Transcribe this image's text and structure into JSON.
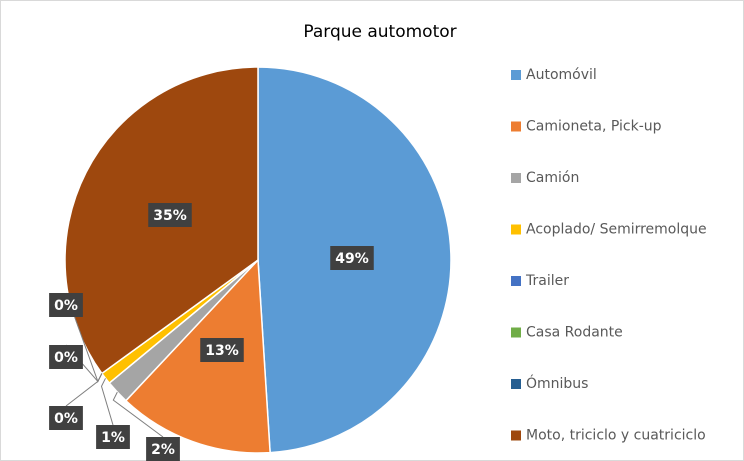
{
  "chart_data": {
    "type": "pie",
    "title": "Parque automotor",
    "categories": [
      "Automóvil",
      "Camioneta, Pick-up",
      "Camión",
      "Acoplado/ Semirremolque",
      "Trailer",
      "Casa Rodante",
      "Ómnibus",
      "Moto, triciclo y cuatriciclo"
    ],
    "values": [
      49,
      13,
      2,
      1,
      0,
      0,
      0,
      35
    ],
    "value_labels": [
      "49%",
      "13%",
      "2%",
      "1%",
      "0%",
      "0%",
      "0%",
      "35%"
    ],
    "colors": [
      "#5b9bd5",
      "#ed7d31",
      "#a5a5a5",
      "#ffc000",
      "#4472c4",
      "#70ad47",
      "#255e91",
      "#9e480e"
    ],
    "legend": "right"
  }
}
